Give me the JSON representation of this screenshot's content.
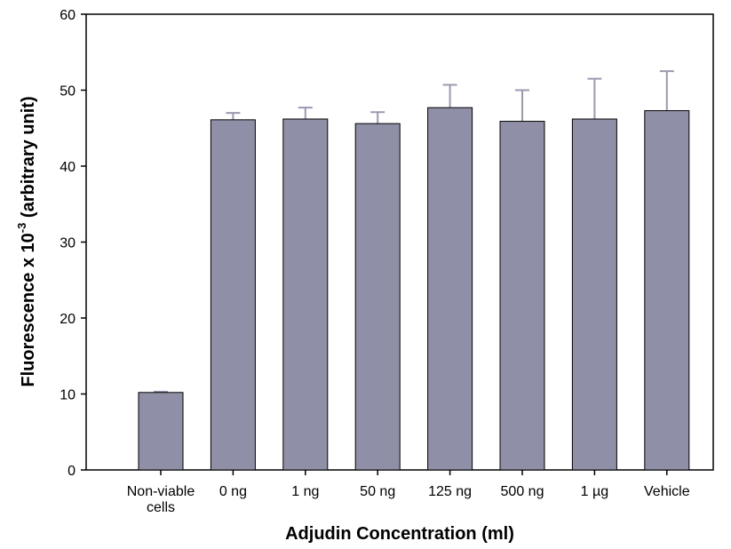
{
  "chart_data": {
    "type": "bar",
    "categories": [
      [
        "Non-viable",
        "cells"
      ],
      [
        "0 ng"
      ],
      [
        "1 ng"
      ],
      [
        "50 ng"
      ],
      [
        "125 ng"
      ],
      [
        "500 ng"
      ],
      [
        "1 µg"
      ],
      [
        "Vehicle"
      ]
    ],
    "values": [
      10.2,
      46.1,
      46.2,
      45.6,
      47.7,
      45.9,
      46.2,
      47.3
    ],
    "error_upper": [
      0.1,
      0.9,
      1.5,
      1.5,
      3.0,
      4.1,
      5.3,
      5.2
    ],
    "xlabel": "Adjudin Concentration (ml)",
    "ylabel_main": "Fluorescence x 10",
    "ylabel_sup": "-3",
    "ylabel_tail": " (arbitrary unit)",
    "ylim": [
      0,
      60
    ],
    "yticks": [
      0,
      10,
      20,
      30,
      40,
      50,
      60
    ],
    "bar_color": "#8f8fa7",
    "error_color": "#9a9ab0",
    "grid": false
  }
}
